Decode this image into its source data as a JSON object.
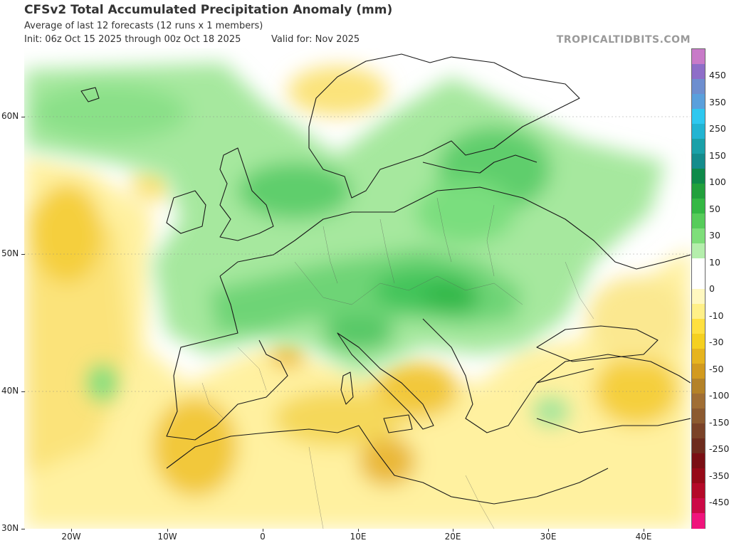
{
  "header": {
    "title": "CFSv2 Total Accumulated Precipitation Anomaly (mm)",
    "subtitle": "Average of last 12 forecasts (12 runs x 1 members)",
    "init": "Init: 06z Oct 15 2025 through 00z Oct 18 2025",
    "valid": "Valid for: Nov 2025",
    "watermark": "TROPICALTIDBITS.COM"
  },
  "map": {
    "latitude_labels": [
      "60N",
      "50N",
      "40N",
      "30N"
    ],
    "longitude_labels": [
      "20W",
      "10W",
      "0",
      "10E",
      "20E",
      "30E",
      "40E"
    ]
  },
  "colorbar": {
    "labels": [
      "450",
      "350",
      "250",
      "150",
      "100",
      "50",
      "30",
      "10",
      "0",
      "-10",
      "-30",
      "-50",
      "-100",
      "-150",
      "-250",
      "-350",
      "-450"
    ],
    "colors": [
      "#c87ac8",
      "#8e6ec8",
      "#6e8ecf",
      "#5aa0dc",
      "#2ec8f0",
      "#22b4d2",
      "#1aa0a8",
      "#148c8c",
      "#0f8a4a",
      "#22a03c",
      "#34b844",
      "#56cc5a",
      "#7ede7a",
      "#b4eeac",
      "#ffffff",
      "#ffffff",
      "#fff8c0",
      "#fff088",
      "#ffe040",
      "#f5d020",
      "#e6b41e",
      "#d29a1e",
      "#b48228",
      "#a06e34",
      "#8c5a30",
      "#7a4228",
      "#6e2c1e",
      "#7a0f14",
      "#960a18",
      "#b40a28",
      "#cc0a46",
      "#f0147c"
    ]
  }
}
